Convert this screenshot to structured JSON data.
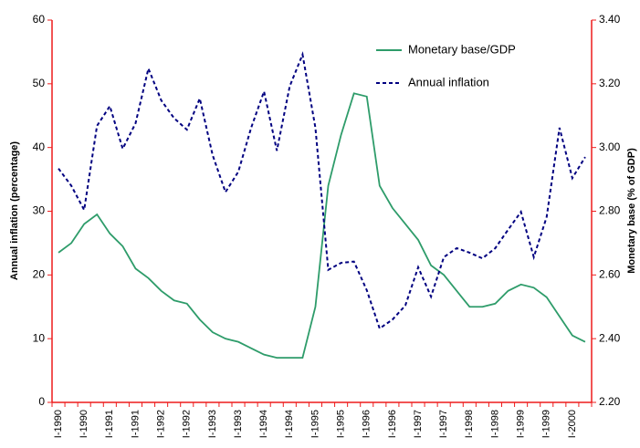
{
  "chart_data": {
    "type": "line",
    "categories": [
      "I-1990",
      null,
      "I-1990",
      null,
      "I-1991",
      null,
      "I-1991",
      null,
      "I-1992",
      null,
      "I-1992",
      null,
      "I-1993",
      null,
      "I-1993",
      null,
      "I-1994",
      null,
      "I-1994",
      null,
      "I-1995",
      null,
      "I-1995",
      null,
      "I-1996",
      null,
      "I-1996",
      null,
      "I-1997",
      null,
      "I-1997",
      null,
      "I-1998",
      null,
      "I-1998",
      null,
      "I-1999",
      null,
      "I-1999",
      null,
      "I-2000",
      null
    ],
    "ylabel": "Annual inflation (percentage)",
    "y2label": "Monetary base (% of GDP)",
    "ylim": [
      0,
      60
    ],
    "yticks": [
      0,
      10,
      20,
      30,
      40,
      50,
      60
    ],
    "y2lim": [
      2.2,
      3.4
    ],
    "y2ticks": [
      {
        "value": 2.2,
        "label": "2.20"
      },
      {
        "value": 2.4,
        "label": "2.40"
      },
      {
        "value": 2.6,
        "label": "2.60"
      },
      {
        "value": 2.8,
        "label": "2.80"
      },
      {
        "value": 3.0,
        "label": "3.00"
      },
      {
        "value": 3.2,
        "label": "3.20"
      },
      {
        "value": 3.4,
        "label": "3.40"
      }
    ],
    "series": [
      {
        "name": "Monetary base/GDP",
        "color": "#2e9c6a",
        "axis": "y2",
        "dashed": false,
        "values": [
          2.67,
          2.7,
          2.76,
          2.79,
          2.73,
          2.69,
          2.62,
          2.59,
          2.55,
          2.52,
          2.51,
          2.46,
          2.42,
          2.4,
          2.39,
          2.37,
          2.35,
          2.34,
          2.34,
          2.34,
          2.5,
          2.88,
          3.04,
          3.17,
          3.16,
          2.88,
          2.81,
          2.76,
          2.71,
          2.63,
          2.6,
          2.55,
          2.5,
          2.5,
          2.51,
          2.55,
          2.57,
          2.56,
          2.53,
          2.47,
          2.41,
          2.39
        ]
      },
      {
        "name": "Annual inflation",
        "color": "#000080",
        "axis": "y",
        "dashed": true,
        "values": [
          36.7,
          34.0,
          30.2,
          43.4,
          46.5,
          39.8,
          43.8,
          52.4,
          47.4,
          44.6,
          42.8,
          47.7,
          38.8,
          33.0,
          36.2,
          43.1,
          48.8,
          39.5,
          49.6,
          54.6,
          43.1,
          20.8,
          21.9,
          22.1,
          17.6,
          11.6,
          13.0,
          15.2,
          21.2,
          16.6,
          22.8,
          24.2,
          23.5,
          22.6,
          24.2,
          27.1,
          29.9,
          22.8,
          29.1,
          43.1,
          35.2,
          38.5
        ]
      }
    ],
    "axis_color": "#ee1c1c"
  }
}
